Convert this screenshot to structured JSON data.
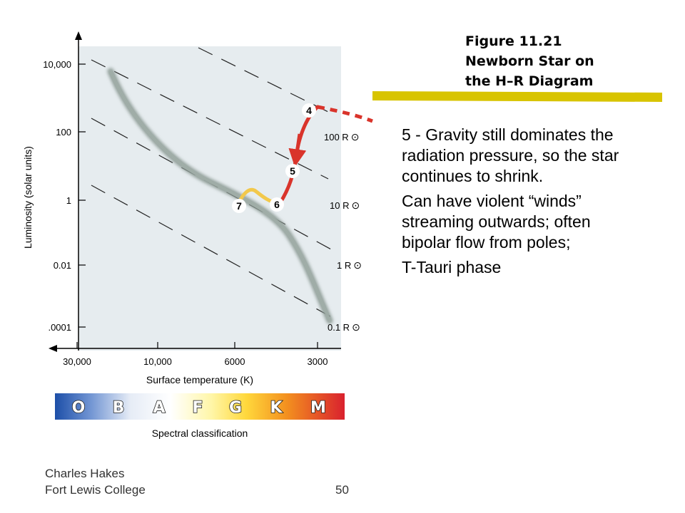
{
  "caption": {
    "line1": "Figure 11.21",
    "line2": "Newborn Star on",
    "line3": "the H–R Diagram"
  },
  "body_paragraphs": [
    "5 - Gravity still dominates the radiation pressure, so the star continues to shrink.",
    "Can have violent “winds” streaming outwards; often bipolar flow from poles;",
    "T-Tauri phase"
  ],
  "footer": {
    "author": "Charles Hakes",
    "institution": "Fort Lewis College",
    "page_number": "50"
  },
  "diagram": {
    "y_axis_label": "Luminosity (solar units)",
    "y_ticks": [
      "10,000",
      "100",
      "1",
      "0.01",
      ".0001"
    ],
    "x_axis_label": "Surface temperature (K)",
    "x_ticks": [
      "30,000",
      "10,000",
      "6000",
      "3000"
    ],
    "radius_labels": [
      "100 R",
      "10 R",
      "1 R",
      "0.1 R"
    ],
    "solar_symbol": "⊙",
    "track_points": [
      "4",
      "5",
      "6",
      "7"
    ],
    "spectral_classes": [
      "O",
      "B",
      "A",
      "F",
      "G",
      "K",
      "M"
    ],
    "spectral_label": "Spectral classification"
  },
  "colors": {
    "plot_background": "#e6ecef",
    "main_sequence": "#8e9c96",
    "track_red": "#d9342b",
    "track_yellow": "#f2c84b",
    "caption_underline": "#d8c400"
  }
}
